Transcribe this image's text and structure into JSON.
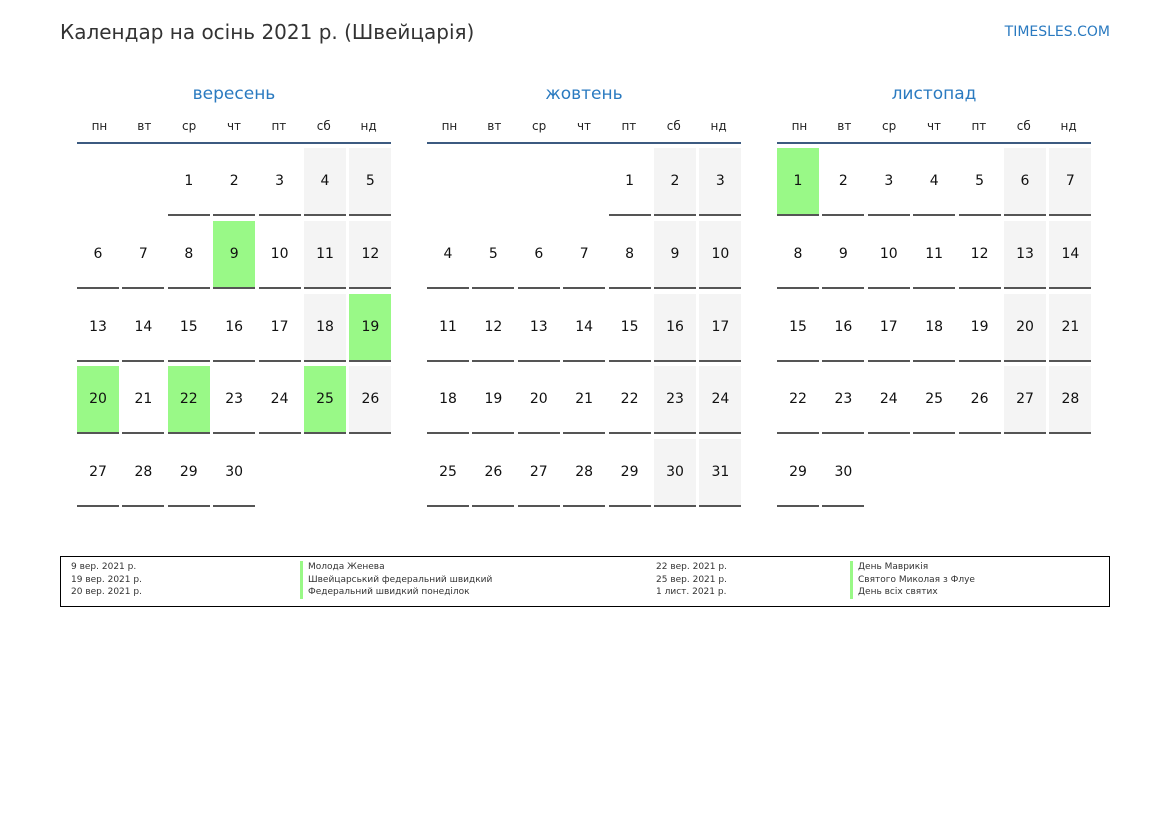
{
  "title": "Календар на осінь 2021 р. (Швейцарія)",
  "site": "TIMESLES.COM",
  "weekdays": [
    "пн",
    "вт",
    "ср",
    "чт",
    "пт",
    "сб",
    "нд"
  ],
  "colors": {
    "holiday": "#99f987",
    "weekend": "#f4f4f4",
    "accent": "#2a7ac0"
  },
  "months": [
    {
      "name": "вересень",
      "offset": 2,
      "days": 30,
      "holidays": [
        9,
        19,
        20,
        22,
        25
      ]
    },
    {
      "name": "жовтень",
      "offset": 4,
      "days": 31,
      "holidays": []
    },
    {
      "name": "листопад",
      "offset": 0,
      "days": 30,
      "holidays": [
        1
      ]
    }
  ],
  "legend": [
    {
      "date": "9 вер. 2021 р.",
      "name": "Молода Женева"
    },
    {
      "date": "19 вер. 2021 р.",
      "name": "Швейцарський федеральний швидкий"
    },
    {
      "date": "20 вер. 2021 р.",
      "name": "Федеральний швидкий понеділок"
    },
    {
      "date": "22 вер. 2021 р.",
      "name": "День Маврикія"
    },
    {
      "date": "25 вер. 2021 р.",
      "name": "Святого Миколая з Флуе"
    },
    {
      "date": "1 лист. 2021 р.",
      "name": "День всіх святих"
    }
  ]
}
